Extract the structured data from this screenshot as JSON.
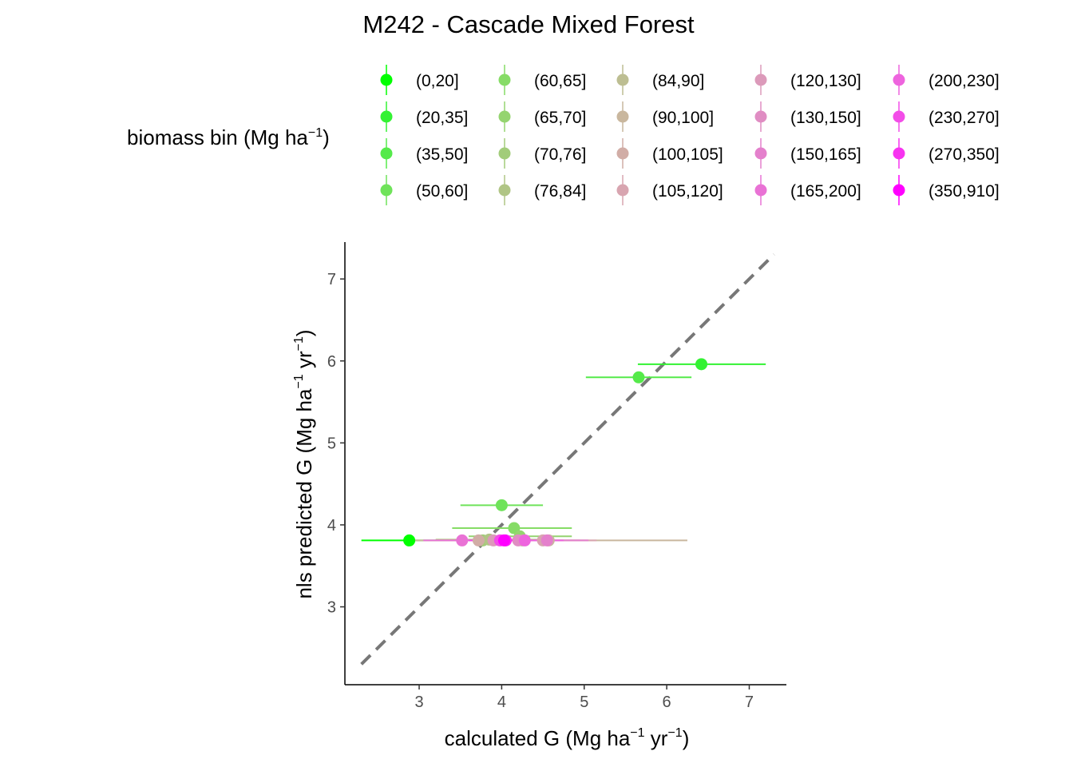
{
  "chart_data": {
    "type": "scatter",
    "title": "M242 - Cascade Mixed Forest",
    "xlabel": {
      "prefix": "calculated G (Mg ha",
      "sup1": "−1",
      "mid": " yr",
      "sup2": "−1",
      "suffix": ")"
    },
    "ylabel": {
      "prefix": "nls predicted G (Mg ha",
      "sup1": "−1",
      "mid": " yr",
      "sup2": "−1",
      "suffix": ")"
    },
    "xlim": [
      2.1,
      7.45
    ],
    "ylim": [
      2.05,
      7.45
    ],
    "x_ticks": [
      3,
      4,
      5,
      6,
      7
    ],
    "y_ticks": [
      3,
      4,
      5,
      6,
      7
    ],
    "reference_line": {
      "slope": 1,
      "intercept": 0,
      "style": "dashed",
      "color": "#777777"
    },
    "grid": false,
    "legend": {
      "title": {
        "prefix": "biomass bin (Mg ha",
        "sup": "−1",
        "suffix": ")"
      },
      "placement": "top",
      "columns": 5,
      "entries": [
        {
          "label": "(0,20]",
          "color": "#00FF00"
        },
        {
          "label": "(20,35]",
          "color": "#33F233"
        },
        {
          "label": "(35,50]",
          "color": "#55EA4A"
        },
        {
          "label": "(50,60]",
          "color": "#6FE35A"
        },
        {
          "label": "(60,65]",
          "color": "#86DC66"
        },
        {
          "label": "(65,70]",
          "color": "#95D470"
        },
        {
          "label": "(70,76]",
          "color": "#A2CC7A"
        },
        {
          "label": "(76,84]",
          "color": "#B0C585"
        },
        {
          "label": "(84,90]",
          "color": "#BDBE92"
        },
        {
          "label": "(90,100]",
          "color": "#C9B79E"
        },
        {
          "label": "(100,105]",
          "color": "#D1ADA6"
        },
        {
          "label": "(105,120]",
          "color": "#D8A5B0"
        },
        {
          "label": "(120,130]",
          "color": "#DC9ABA"
        },
        {
          "label": "(130,150]",
          "color": "#E08DC3"
        },
        {
          "label": "(150,165]",
          "color": "#E480CC"
        },
        {
          "label": "(165,200]",
          "color": "#E972D5"
        },
        {
          "label": "(200,230]",
          "color": "#EE64DE"
        },
        {
          "label": "(230,270]",
          "color": "#F34DE8"
        },
        {
          "label": "(270,350]",
          "color": "#F733F0"
        },
        {
          "label": "(350,910]",
          "color": "#FF00FF"
        }
      ]
    },
    "points": [
      {
        "bin": "(0,20]",
        "x": 2.88,
        "y": 3.81,
        "xmin": 2.3,
        "xmax": 3.5
      },
      {
        "bin": "(20,35]",
        "x": 6.42,
        "y": 5.96,
        "xmin": 5.65,
        "xmax": 7.2
      },
      {
        "bin": "(35,50]",
        "x": 5.66,
        "y": 5.8,
        "xmin": 5.02,
        "xmax": 6.3
      },
      {
        "bin": "(50,60]",
        "x": 4.0,
        "y": 4.24,
        "xmin": 3.5,
        "xmax": 4.5
      },
      {
        "bin": "(60,65]",
        "x": 4.15,
        "y": 3.96,
        "xmin": 3.4,
        "xmax": 4.85
      },
      {
        "bin": "(65,70]",
        "x": 4.22,
        "y": 3.86,
        "xmin": 3.6,
        "xmax": 4.85
      },
      {
        "bin": "(70,76]",
        "x": 3.77,
        "y": 3.81,
        "xmin": 3.3,
        "xmax": 4.3
      },
      {
        "bin": "(76,84]",
        "x": 3.85,
        "y": 3.82,
        "xmin": 3.2,
        "xmax": 4.5
      },
      {
        "bin": "(84,90]",
        "x": 4.25,
        "y": 3.81,
        "xmin": 3.55,
        "xmax": 4.95
      },
      {
        "bin": "(90,100]",
        "x": 4.57,
        "y": 3.81,
        "xmin": 2.9,
        "xmax": 6.25
      },
      {
        "bin": "(100,105]",
        "x": 3.72,
        "y": 3.81,
        "xmin": 3.3,
        "xmax": 4.15
      },
      {
        "bin": "(105,120]",
        "x": 4.5,
        "y": 3.81,
        "xmin": 3.85,
        "xmax": 5.15
      },
      {
        "bin": "(120,130]",
        "x": 3.9,
        "y": 3.81,
        "xmin": 3.45,
        "xmax": 4.35
      },
      {
        "bin": "(130,150]",
        "x": 4.2,
        "y": 3.81,
        "xmin": 3.75,
        "xmax": 4.65
      },
      {
        "bin": "(150,165]",
        "x": 4.55,
        "y": 3.81,
        "xmin": 4.05,
        "xmax": 5.05
      },
      {
        "bin": "(165,200]",
        "x": 3.52,
        "y": 3.81,
        "xmin": 3.05,
        "xmax": 4.0
      },
      {
        "bin": "(200,230]",
        "x": 4.28,
        "y": 3.81,
        "xmin": 3.8,
        "xmax": 4.75
      },
      {
        "bin": "(230,270]",
        "x": 3.98,
        "y": 3.81,
        "xmin": 3.6,
        "xmax": 4.35
      },
      {
        "bin": "(270,350]",
        "x": 4.05,
        "y": 3.81,
        "xmin": 3.75,
        "xmax": 4.35
      },
      {
        "bin": "(350,910]",
        "x": 4.03,
        "y": 3.81,
        "xmin": 3.85,
        "xmax": 4.2
      }
    ]
  }
}
